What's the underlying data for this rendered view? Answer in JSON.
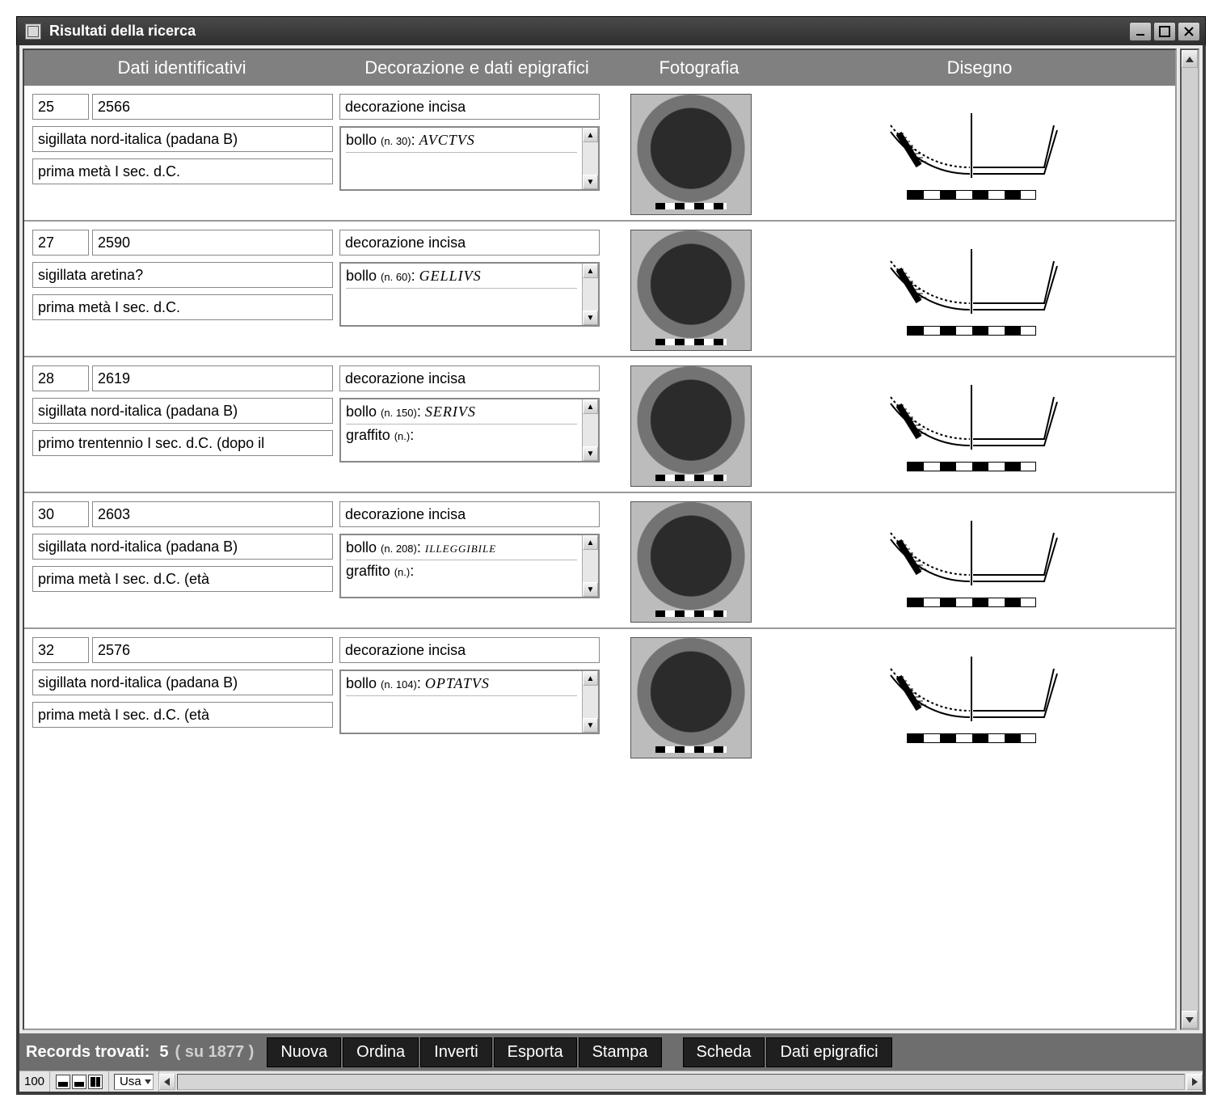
{
  "window": {
    "title": "Risultati della ricerca"
  },
  "headers": {
    "id": "Dati identificativi",
    "dec": "Decorazione e dati epigrafici",
    "foto": "Fotografia",
    "dis": "Disegno"
  },
  "records": [
    {
      "num": "25",
      "inv": "2566",
      "classe": "sigillata nord-italica (padana B)",
      "crono": "prima metà I sec. d.C.",
      "decor": "decorazione incisa",
      "bolli": [
        "bollo (n. 30): AVCTVS",
        ""
      ]
    },
    {
      "num": "27",
      "inv": "2590",
      "classe": "sigillata aretina?",
      "crono": "prima metà I sec. d.C.",
      "decor": "decorazione incisa",
      "bolli": [
        "bollo (n. 60): GELLIVS",
        ""
      ]
    },
    {
      "num": "28",
      "inv": "2619",
      "classe": "sigillata nord-italica (padana B)",
      "crono": "primo trentennio I sec. d.C. (dopo il",
      "decor": "decorazione incisa",
      "bolli": [
        "bollo (n. 150): SERIVS",
        "graffito (n.):"
      ]
    },
    {
      "num": "30",
      "inv": "2603",
      "classe": "sigillata nord-italica (padana B)",
      "crono": "prima metà I sec. d.C. (età",
      "decor": "decorazione incisa",
      "bolli": [
        "bollo (n. 208): illeggibile",
        "graffito (n.):"
      ]
    },
    {
      "num": "32",
      "inv": "2576",
      "classe": "sigillata nord-italica (padana B)",
      "crono": "prima metà I sec. d.C. (età",
      "decor": "decorazione incisa",
      "bolli": [
        "bollo (n. 104): OPTATVS",
        ""
      ]
    }
  ],
  "footer": {
    "label": "Records trovati:",
    "count": "5",
    "total": "( su 1877 )",
    "buttons": [
      "Nuova",
      "Ordina",
      "Inverti",
      "Esporta",
      "Stampa"
    ],
    "buttons2": [
      "Scheda",
      "Dati epigrafici"
    ]
  },
  "status": {
    "zoom": "100",
    "layout": "Usa"
  },
  "colors": {
    "header_bg": "#808080",
    "footer_bg": "#6e6e6e",
    "btn_bg": "#1f1f1f",
    "frame": "#3a3a3a"
  }
}
